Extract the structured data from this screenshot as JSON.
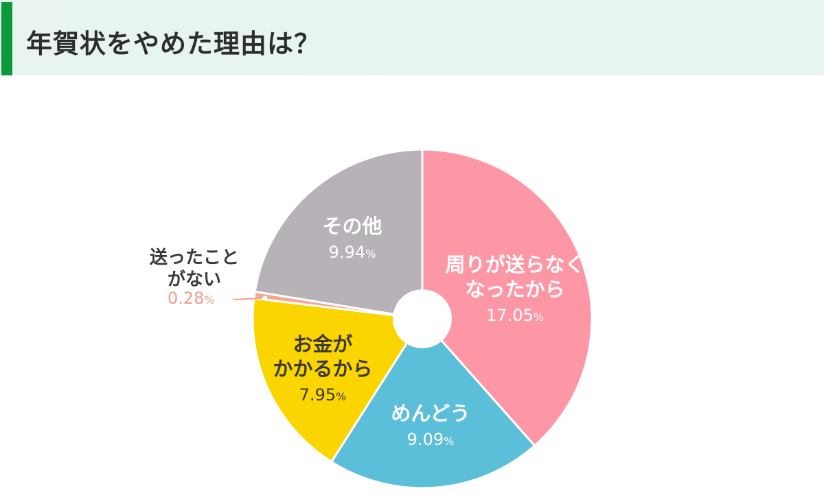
{
  "header": {
    "title": "年賀状をやめた理由は？",
    "accent_color": "#0a9a3c",
    "background_color": "#e7f4ef"
  },
  "chart_data": {
    "type": "pie",
    "title": "年賀状をやめた理由は？",
    "donut_hole": true,
    "start_angle_deg": 0,
    "direction": "clockwise",
    "unit": "%",
    "slices": [
      {
        "label": "周りが送らなくなったから",
        "label_lines": [
          "周りが送らなく",
          "なったから"
        ],
        "value": 17.05,
        "value_text": "17.05",
        "color": "#fd97a6",
        "text_color": "#ffffff"
      },
      {
        "label": "めんどう",
        "label_lines": [
          "めんどう"
        ],
        "value": 9.09,
        "value_text": "9.09",
        "color": "#5bbfd9",
        "text_color": "#ffffff"
      },
      {
        "label": "お金がかかるから",
        "label_lines": [
          "お金が",
          "かかるから"
        ],
        "value": 7.95,
        "value_text": "7.95",
        "color": "#fbd500",
        "text_color": "#3a3a3a"
      },
      {
        "label": "送ったことがない",
        "label_lines": [
          "送ったこと",
          "がない"
        ],
        "value": 0.28,
        "value_text": "0.28",
        "color": "#f4a893",
        "text_color": "#eea08a",
        "external_label": true
      },
      {
        "label": "その他",
        "label_lines": [
          "その他"
        ],
        "value": 9.94,
        "value_text": "9.94",
        "color": "#b6b2b7",
        "text_color": "#ffffff"
      }
    ],
    "legend": "none (labels on slices)"
  }
}
